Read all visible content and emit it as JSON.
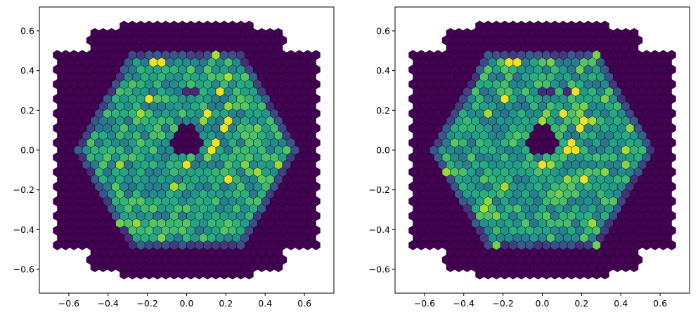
{
  "chart_data": [
    {
      "type": "heatmap",
      "name": "Left camera image",
      "title": "",
      "xlabel": "",
      "ylabel": "",
      "xlim": [
        -0.75,
        0.75
      ],
      "ylim": [
        -0.72,
        0.72
      ],
      "xticks": [
        -0.6,
        -0.4,
        -0.2,
        0.0,
        0.2,
        0.4,
        0.6
      ],
      "xtick_labels": [
        "−0.6",
        "−0.4",
        "−0.2",
        "0.0",
        "0.2",
        "0.4",
        "0.6"
      ],
      "yticks": [
        -0.6,
        -0.4,
        -0.2,
        0.0,
        0.2,
        0.4,
        0.6
      ],
      "ytick_labels": [
        "−0.6",
        "−0.4",
        "−0.2",
        "0.0",
        "0.2",
        "0.4",
        "0.6"
      ],
      "grid": false,
      "colormap": "viridis",
      "pixel_pitch": 0.0425,
      "outer_vertex_radius": 0.66,
      "outer_row_extents": [
        [
          0.62,
          0.34
        ],
        [
          0.5,
          0.5
        ],
        [
          0.38,
          0.66
        ],
        [
          0.0,
          0.66
        ]
      ],
      "active_region_radius": 0.58,
      "central_hole": {
        "x": 0.0,
        "y": 0.06,
        "radius": 0.075
      },
      "extra_low_pixels": [
        {
          "x": 0.02,
          "y": 0.29
        }
      ],
      "hot_pixels": [
        {
          "x": -0.21,
          "y": 0.27
        },
        {
          "x": -0.15,
          "y": 0.45
        },
        {
          "x": 0.18,
          "y": 0.31
        },
        {
          "x": 0.2,
          "y": 0.13
        },
        {
          "x": 0.13,
          "y": 0.02
        },
        {
          "x": 0.11,
          "y": 0.2
        },
        {
          "x": -0.01,
          "y": -0.09
        },
        {
          "x": 0.23,
          "y": -0.16
        }
      ],
      "seed": 7
    },
    {
      "type": "heatmap",
      "name": "Right camera image",
      "title": "",
      "xlabel": "",
      "ylabel": "",
      "xlim": [
        -0.75,
        0.75
      ],
      "ylim": [
        -0.72,
        0.72
      ],
      "xticks": [
        -0.6,
        -0.4,
        -0.2,
        0.0,
        0.2,
        0.4,
        0.6
      ],
      "xtick_labels": [
        "−0.6",
        "−0.4",
        "−0.2",
        "0.0",
        "0.2",
        "0.4",
        "0.6"
      ],
      "yticks": [
        -0.6,
        -0.4,
        -0.2,
        0.0,
        0.2,
        0.4,
        0.6
      ],
      "ytick_labels": [
        "−0.6",
        "−0.4",
        "−0.2",
        "0.0",
        "0.2",
        "0.4",
        "0.6"
      ],
      "grid": false,
      "colormap": "viridis",
      "pixel_pitch": 0.0425,
      "outer_vertex_radius": 0.66,
      "outer_row_extents": [
        [
          0.62,
          0.34
        ],
        [
          0.5,
          0.5
        ],
        [
          0.38,
          0.66
        ],
        [
          0.0,
          0.66
        ]
      ],
      "active_region_radius": 0.58,
      "central_hole": {
        "x": 0.0,
        "y": 0.06,
        "radius": 0.075
      },
      "extra_low_pixels": [
        {
          "x": 0.02,
          "y": 0.29
        },
        {
          "x": 0.13,
          "y": 0.29
        }
      ],
      "hot_pixels": [
        {
          "x": -0.21,
          "y": 0.27
        },
        {
          "x": -0.15,
          "y": 0.45
        },
        {
          "x": 0.18,
          "y": 0.31
        },
        {
          "x": 0.2,
          "y": 0.13
        },
        {
          "x": 0.15,
          "y": 0.02
        },
        {
          "x": 0.12,
          "y": 0.2
        },
        {
          "x": -0.01,
          "y": -0.09
        },
        {
          "x": 0.23,
          "y": -0.16
        }
      ],
      "seed": 13
    }
  ]
}
